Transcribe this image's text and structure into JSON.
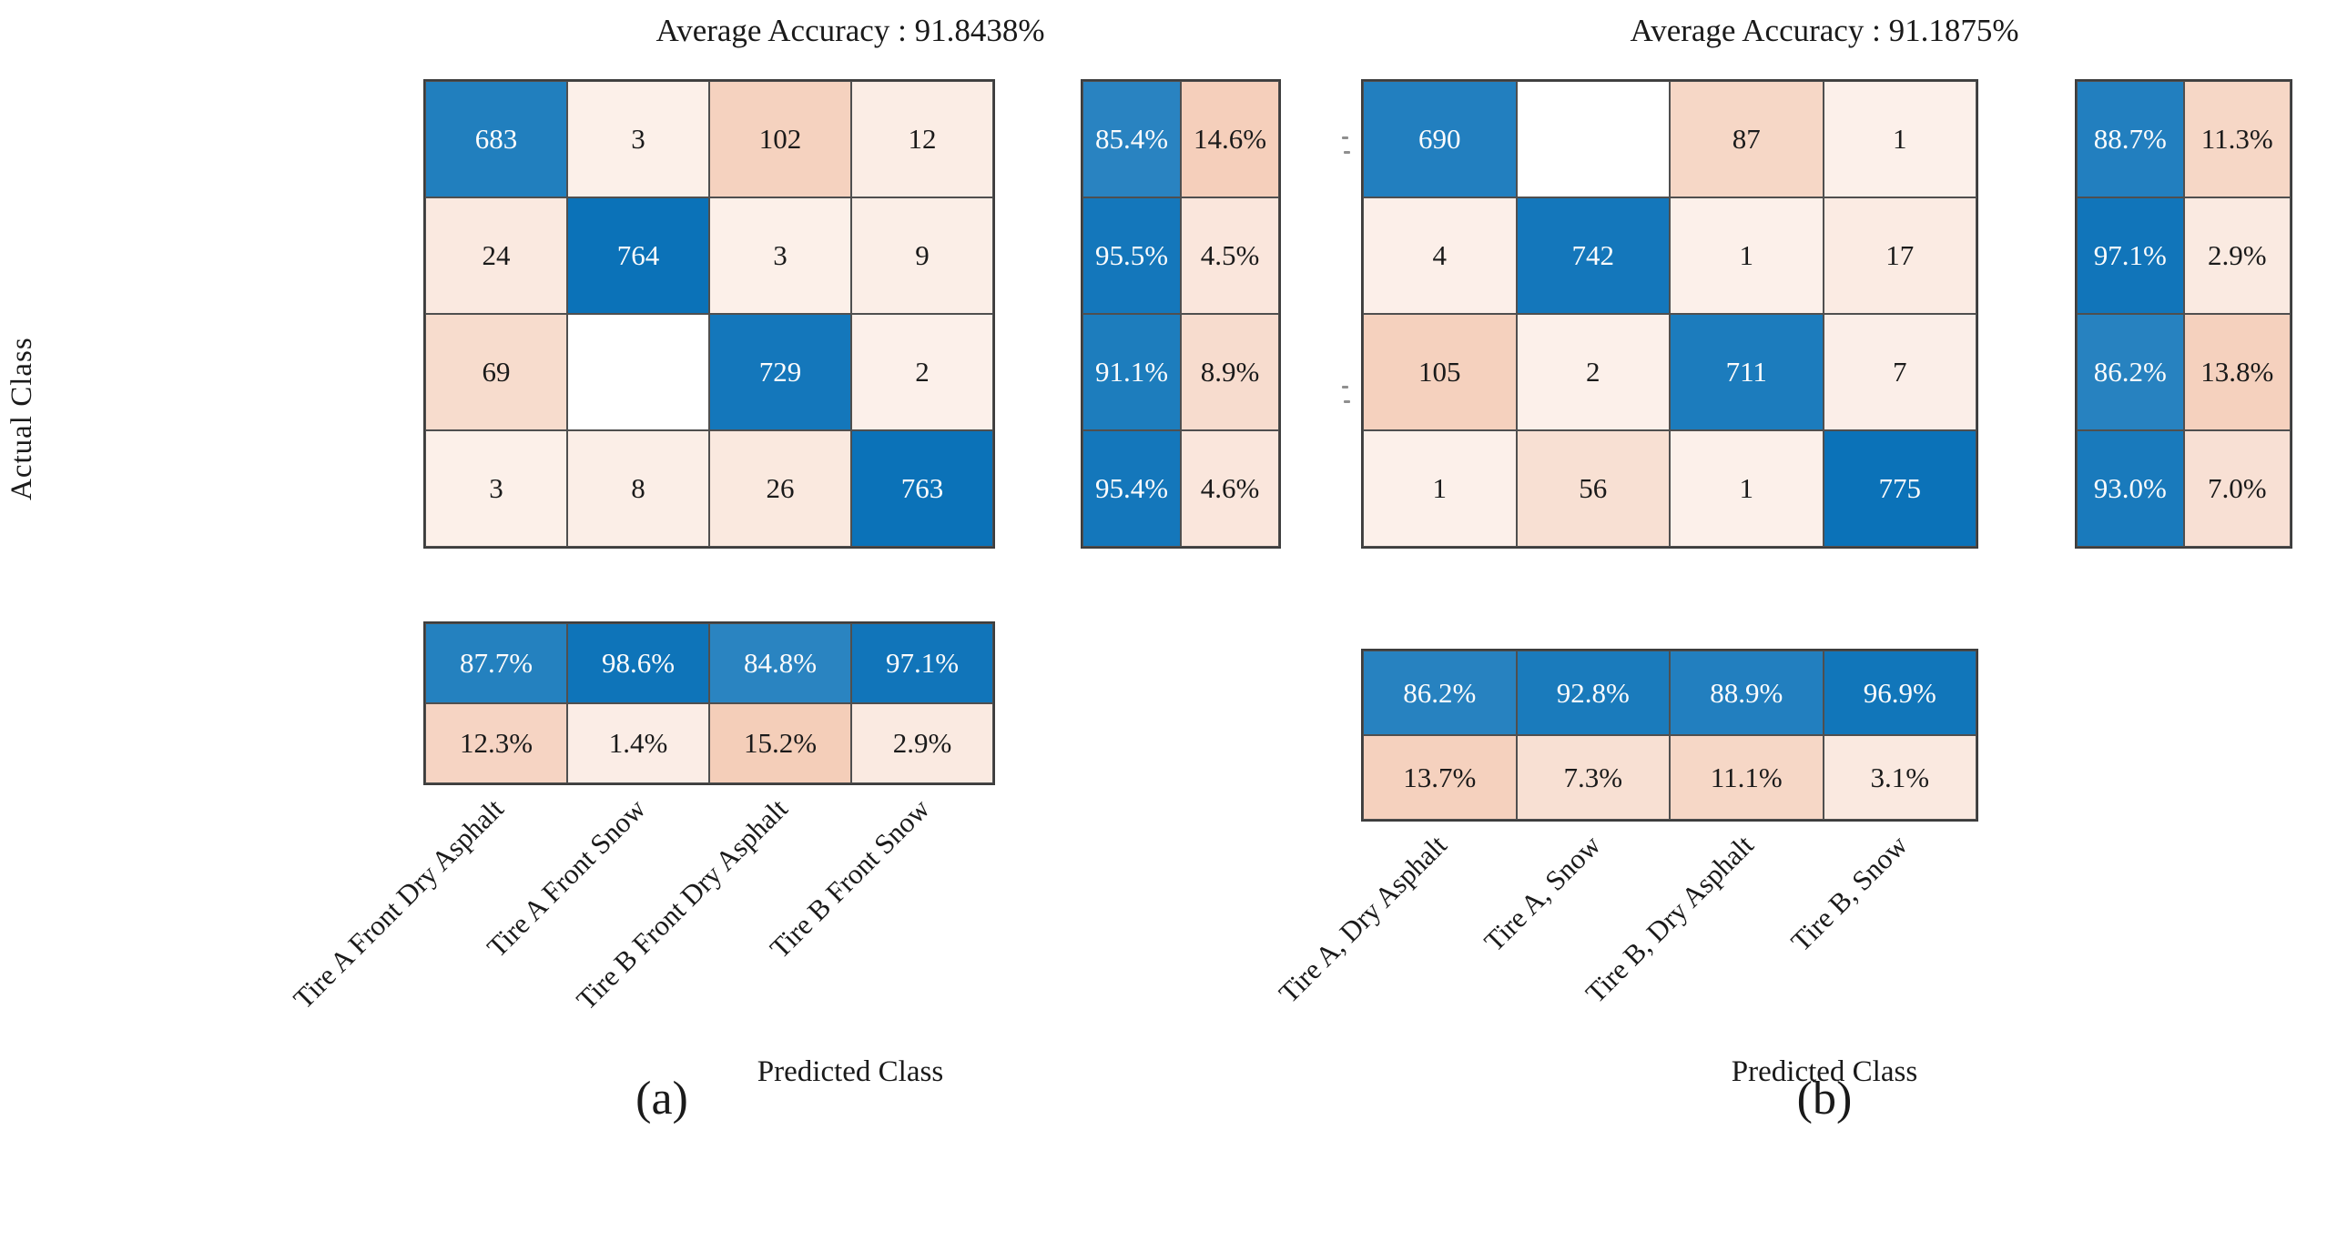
{
  "colors": {
    "diagonal_blue": "#0b72b8",
    "off_diagonal_orange": "#e58654",
    "grid_line": "#4f4f4f",
    "block_border": "#3d3d3d",
    "cell_text_dark": "#1a1a1a",
    "cell_text_light": "#fcfcfc",
    "background": "#ffffff"
  },
  "chart_data": [
    {
      "type": "heatmap",
      "panel_label": "(a)",
      "title": "Average Accuracy : 91.8438%",
      "xlabel": "Predicted Class",
      "ylabel": "Actual Class",
      "classes": [
        "Tire A Front Dry Asphalt",
        "Tire A Front Snow",
        "Tire B Front Dry Asphalt",
        "Tire B Front Snow"
      ],
      "show_row_labels": true,
      "matrix": [
        [
          683,
          3,
          102,
          12
        ],
        [
          24,
          764,
          3,
          9
        ],
        [
          69,
          0,
          729,
          2
        ],
        [
          3,
          8,
          26,
          763
        ]
      ],
      "zero_cells_rendered_blank": true,
      "row_summary_position": "right",
      "row_summary_pct": [
        [
          "85.4%",
          "14.6%"
        ],
        [
          "95.5%",
          "4.5%"
        ],
        [
          "91.1%",
          "8.9%"
        ],
        [
          "95.4%",
          "4.6%"
        ]
      ],
      "col_summary_position": "bottom",
      "col_summary_pct": [
        [
          "87.7%",
          "98.6%",
          "84.8%",
          "97.1%"
        ],
        [
          "12.3%",
          "1.4%",
          "15.2%",
          "2.9%"
        ]
      ]
    },
    {
      "type": "heatmap",
      "panel_label": "(b)",
      "title": "Average Accuracy : 91.1875%",
      "xlabel": "Predicted Class",
      "ylabel": "",
      "classes": [
        "Tire A, Dry Asphalt",
        "Tire A, Snow",
        "Tire B, Dry Asphalt",
        "Tire B, Snow"
      ],
      "show_row_labels": false,
      "matrix": [
        [
          690,
          0,
          87,
          1
        ],
        [
          4,
          742,
          1,
          17
        ],
        [
          105,
          2,
          711,
          7
        ],
        [
          1,
          56,
          1,
          775
        ]
      ],
      "zero_cells_rendered_blank": true,
      "row_summary_position": "right",
      "row_summary_pct": [
        [
          "88.7%",
          "11.3%"
        ],
        [
          "97.1%",
          "2.9%"
        ],
        [
          "86.2%",
          "13.8%"
        ],
        [
          "93.0%",
          "7.0%"
        ]
      ],
      "col_summary_position": "bottom",
      "col_summary_pct": [
        [
          "86.2%",
          "92.8%",
          "88.9%",
          "96.9%"
        ],
        [
          "13.7%",
          "7.3%",
          "11.1%",
          "3.1%"
        ]
      ]
    }
  ],
  "artifacts": {
    "clipped_row_label_marks_panel_b": "tiny gray specks left of panel (b) rows 1 and 3"
  }
}
